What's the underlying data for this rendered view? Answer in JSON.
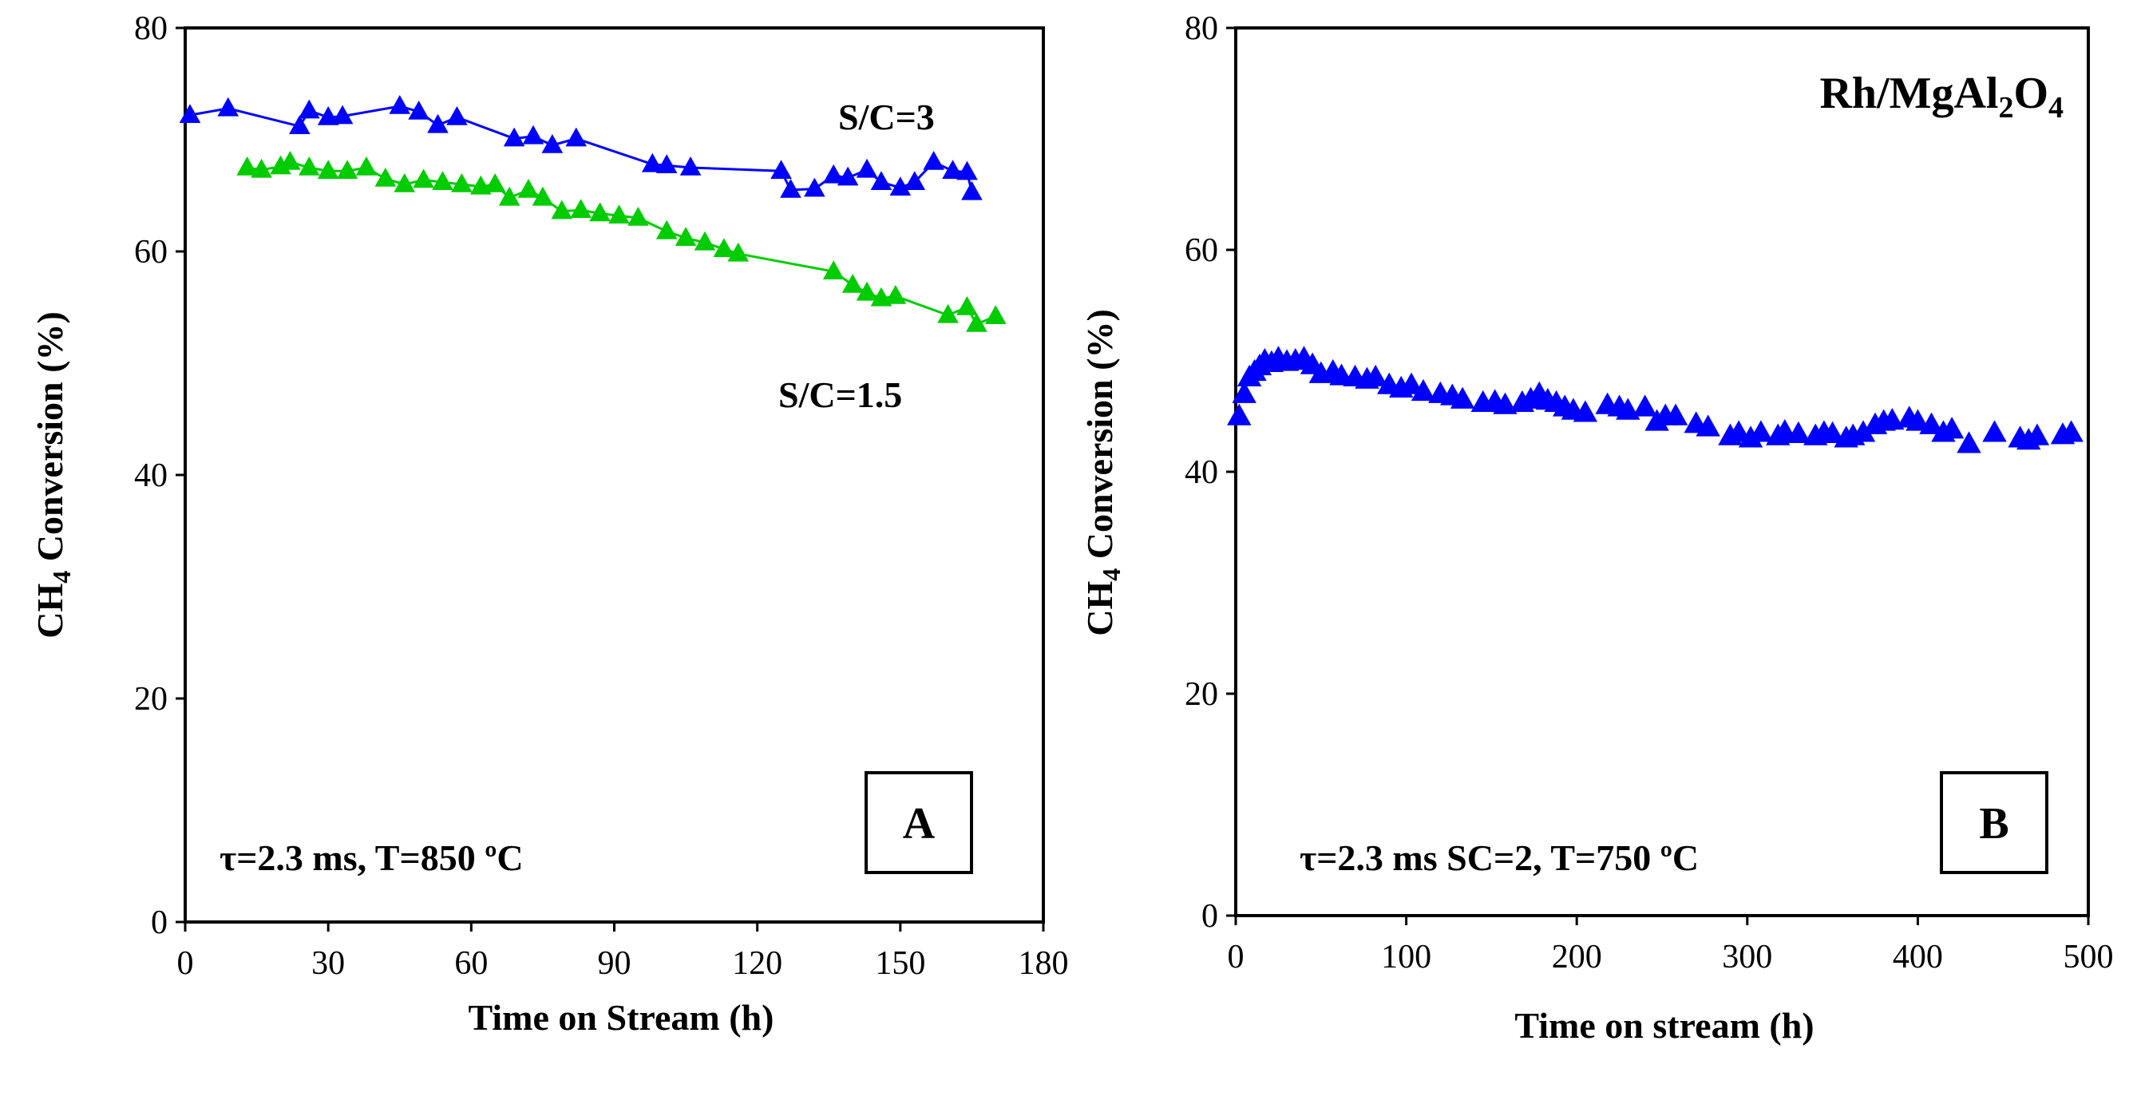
{
  "chart_data": [
    {
      "type": "line",
      "panel_label": "A",
      "xlabel": "Time on Stream (h)",
      "ylabel_parts": {
        "prefix": "CH",
        "sub": "4",
        "rest": " Conversion  (%)"
      },
      "xlim": [
        0,
        180
      ],
      "ylim": [
        0,
        80
      ],
      "xticks": [
        "0",
        "30",
        "60",
        "90",
        "120",
        "150",
        "180"
      ],
      "yticks": [
        "0",
        "20",
        "40",
        "60",
        "80"
      ],
      "condition_text": "τ=2.3 ms, T=850 ºC",
      "series": [
        {
          "name": "S/C=3",
          "color": "#0000ff",
          "x": [
            1,
            9,
            24,
            26,
            30,
            33,
            45,
            49,
            53,
            57,
            69,
            73,
            77,
            82,
            98,
            101,
            106,
            125,
            127,
            132,
            136,
            139,
            143,
            146,
            150,
            153,
            157,
            161,
            164,
            165
          ],
          "y": [
            72.2,
            72.8,
            71.2,
            72.6,
            72.0,
            72.1,
            73.0,
            72.5,
            71.3,
            72.0,
            70.1,
            70.3,
            69.5,
            70.1,
            67.8,
            67.7,
            67.5,
            67.2,
            65.5,
            65.6,
            66.8,
            66.6,
            67.3,
            66.2,
            65.7,
            66.2,
            68.0,
            67.2,
            67.1,
            65.3
          ]
        },
        {
          "name": "S/C=1.5",
          "color": "#00cc00",
          "x": [
            13,
            16,
            20,
            22,
            26,
            30,
            34,
            38,
            42,
            46,
            50,
            54,
            58,
            62,
            65,
            68,
            72,
            75,
            79,
            83,
            87,
            91,
            95,
            101,
            105,
            109,
            113,
            116,
            136,
            140,
            143,
            146,
            149,
            160,
            164,
            166,
            170
          ],
          "y": [
            67.5,
            67.3,
            67.6,
            68.0,
            67.5,
            67.2,
            67.2,
            67.5,
            66.5,
            66.0,
            66.4,
            66.2,
            66.0,
            65.8,
            66.0,
            64.8,
            65.5,
            64.8,
            63.6,
            63.7,
            63.4,
            63.2,
            63.0,
            61.8,
            61.2,
            60.8,
            60.2,
            59.8,
            58.2,
            57.0,
            56.3,
            55.8,
            56.0,
            54.3,
            55.0,
            53.5,
            54.2
          ]
        }
      ]
    },
    {
      "type": "scatter",
      "panel_label": "B",
      "title": {
        "parts": [
          "Rh/MgAl",
          "2",
          "O",
          "4"
        ]
      },
      "xlabel": "Time on stream (h)",
      "ylabel_parts": {
        "prefix": "CH",
        "sub": "4",
        "rest": " Conversion  (%)"
      },
      "xlim": [
        0,
        500
      ],
      "ylim": [
        0,
        80
      ],
      "xticks": [
        "0",
        "100",
        "200",
        "300",
        "400",
        "500"
      ],
      "yticks": [
        "0",
        "20",
        "40",
        "60",
        "80"
      ],
      "condition_text": "τ=2.3 ms SC=2, T=750 ºC",
      "series": [
        {
          "name": "Rh/MgAl2O4",
          "color": "#0000ff",
          "x": [
            2,
            5,
            8,
            11,
            14,
            17,
            21,
            25,
            30,
            35,
            40,
            45,
            50,
            57,
            62,
            70,
            77,
            82,
            90,
            97,
            103,
            110,
            120,
            127,
            133,
            145,
            152,
            158,
            168,
            173,
            178,
            183,
            188,
            193,
            198,
            205,
            218,
            225,
            230,
            240,
            247,
            252,
            258,
            270,
            277,
            290,
            295,
            302,
            308,
            318,
            322,
            330,
            340,
            345,
            350,
            358,
            362,
            368,
            375,
            380,
            385,
            395,
            400,
            408,
            415,
            420,
            430,
            445,
            460,
            465,
            470,
            485,
            490
          ],
          "y": [
            45,
            47,
            48.5,
            49,
            49.5,
            50,
            49.8,
            50.2,
            49.9,
            50,
            50.2,
            49.6,
            48.8,
            49,
            48.6,
            48.5,
            48.3,
            48.5,
            47.8,
            47.5,
            47.8,
            47.2,
            47,
            46.8,
            46.5,
            46.2,
            46.3,
            46,
            46.2,
            46.5,
            47,
            46.4,
            46.2,
            45.8,
            45.5,
            45.3,
            46,
            45.8,
            45.5,
            45.8,
            44.5,
            45,
            45,
            44.3,
            44,
            43.2,
            43.5,
            43,
            43.5,
            43.2,
            43.6,
            43.4,
            43.2,
            43.5,
            43.4,
            43,
            43.2,
            43.5,
            44.2,
            44.5,
            44.6,
            44.8,
            44.5,
            44.2,
            43.5,
            43.8,
            42.5,
            43.5,
            43,
            42.8,
            43.2,
            43.3,
            43.5
          ]
        }
      ]
    }
  ]
}
